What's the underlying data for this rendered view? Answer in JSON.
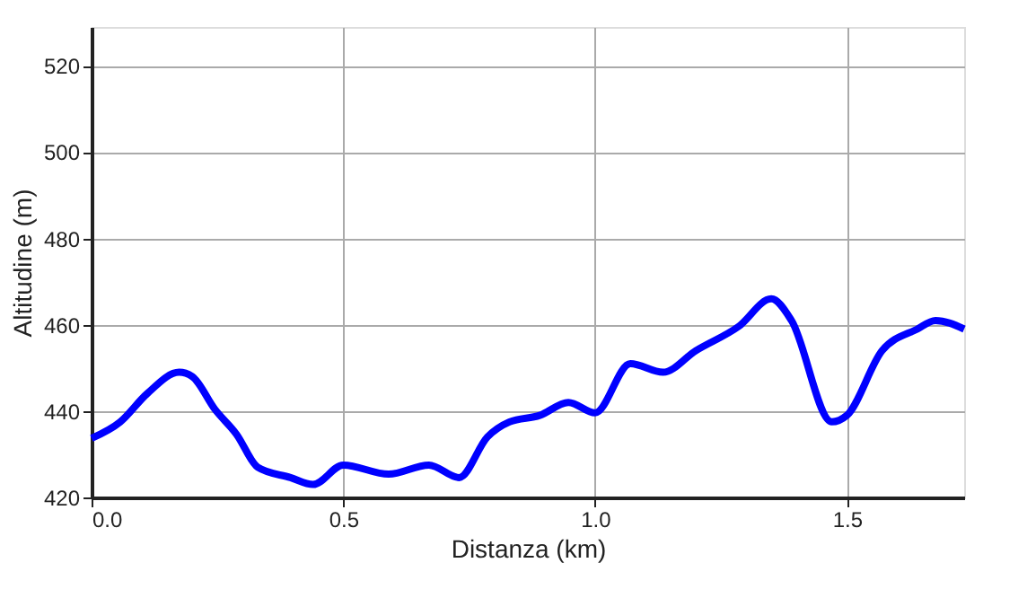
{
  "chart_data": {
    "type": "line",
    "xlabel": "Distanza (km)",
    "ylabel": "Altitudine (m)",
    "x": [
      0,
      0.057,
      0.11,
      0.174,
      0.2,
      0.245,
      0.288,
      0.33,
      0.395,
      0.44,
      0.5,
      0.59,
      0.67,
      0.73,
      0.786,
      0.83,
      0.89,
      0.947,
      1.0,
      1.07,
      1.135,
      1.2,
      1.285,
      1.35,
      1.39,
      1.47,
      1.5,
      1.57,
      1.64,
      1.676,
      1.733
    ],
    "series": [
      {
        "color": "#0000ff",
        "values": [
          433.7,
          437.5,
          444,
          449,
          448,
          440.4,
          434.6,
          427,
          424.6,
          423,
          427.5,
          425.4,
          427.5,
          424.6,
          434,
          437.5,
          439,
          442,
          439.6,
          451,
          449,
          454,
          459.6,
          466,
          461,
          437.5,
          439,
          454,
          459,
          461,
          459
        ]
      }
    ],
    "xlim": [
      0,
      1.733
    ],
    "ylim": [
      420,
      529
    ],
    "xticks": [
      {
        "value": 0,
        "label": "0.0"
      },
      {
        "value": 0.5,
        "label": "0.5"
      },
      {
        "value": 1,
        "label": "1.0"
      },
      {
        "value": 1.5,
        "label": "1.5"
      }
    ],
    "yticks": [
      420,
      440,
      460,
      480,
      500,
      520
    ],
    "grid": true,
    "marker": "none",
    "line_style": "solid"
  }
}
